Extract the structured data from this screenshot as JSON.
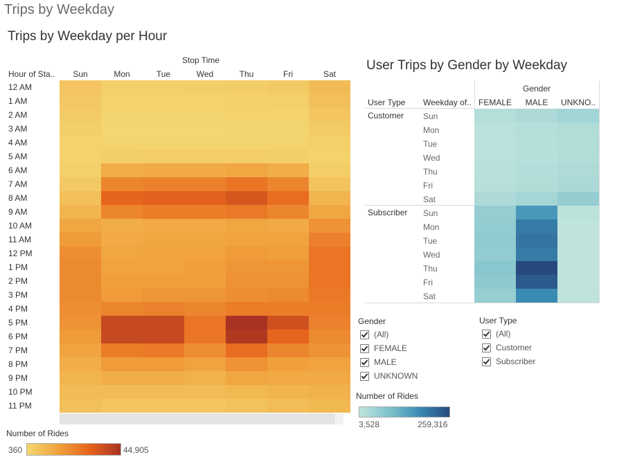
{
  "dashboard": {
    "title": "Trips by Weekday"
  },
  "heatmap1": {
    "title": "Trips by Weekday per Hour",
    "col_group_label": "Stop Time",
    "row_header": "Hour of Sta..",
    "legend": {
      "title": "Number of Rides",
      "min_label": "360",
      "max_label": "44,905"
    }
  },
  "heatmap2": {
    "title": "User Trips by Gender by Weekday",
    "col_group_label": "Gender",
    "row_header_1": "User Type",
    "row_header_2": "Weekday of..",
    "legend": {
      "title": "Number of Rides",
      "min_label": "3,528",
      "max_label": "259,316"
    }
  },
  "filters": {
    "gender": {
      "title": "Gender",
      "options": [
        "(All)",
        "FEMALE",
        "MALE",
        "UNKNOWN"
      ]
    },
    "user_type": {
      "title": "User Type",
      "options": [
        "(All)",
        "Customer",
        "Subscriber"
      ]
    }
  },
  "colors": {
    "scale1": [
      "#f4d670",
      "#f0a23d",
      "#e7641c",
      "#a83322"
    ],
    "scale2": [
      "#bfe4dd",
      "#7fc2cb",
      "#3a8cb4",
      "#27497e"
    ]
  },
  "chart_data": [
    {
      "type": "heatmap",
      "title": "Trips by Weekday per Hour",
      "x_title": "Stop Time",
      "y_title": "Hour of Sta..",
      "x": [
        "Sun",
        "Mon",
        "Tue",
        "Wed",
        "Thu",
        "Fri",
        "Sat"
      ],
      "y": [
        "12 AM",
        "1 AM",
        "2 AM",
        "3 AM",
        "4 AM",
        "5 AM",
        "6 AM",
        "7 AM",
        "8 AM",
        "9 AM",
        "10 AM",
        "11 AM",
        "12 PM",
        "1 PM",
        "2 PM",
        "3 PM",
        "4 PM",
        "5 PM",
        "6 PM",
        "7 PM",
        "8 PM",
        "9 PM",
        "10 PM",
        "11 PM"
      ],
      "values": [
        [
          5400,
          2000,
          2200,
          2500,
          3000,
          3500,
          8000
        ],
        [
          4500,
          1200,
          1300,
          1500,
          1800,
          2200,
          6500
        ],
        [
          3500,
          800,
          900,
          1000,
          1200,
          1500,
          5000
        ],
        [
          2500,
          600,
          600,
          700,
          800,
          900,
          3500
        ],
        [
          1600,
          800,
          800,
          800,
          900,
          1000,
          2000
        ],
        [
          1200,
          2500,
          2600,
          2600,
          2600,
          2500,
          1500
        ],
        [
          2000,
          12000,
          13000,
          13000,
          14000,
          12000,
          2800
        ],
        [
          4000,
          22000,
          23000,
          23000,
          26000,
          22000,
          5500
        ],
        [
          7000,
          30000,
          31000,
          31000,
          34000,
          28000,
          10000
        ],
        [
          10000,
          22000,
          24000,
          24000,
          25000,
          22000,
          14000
        ],
        [
          14000,
          12000,
          13000,
          13000,
          14000,
          13000,
          19000
        ],
        [
          17000,
          13000,
          14000,
          14000,
          15000,
          15000,
          23000
        ],
        [
          20000,
          14000,
          15000,
          15000,
          17000,
          16000,
          26000
        ],
        [
          21000,
          15000,
          15000,
          16000,
          18000,
          18000,
          26000
        ],
        [
          21000,
          16000,
          16000,
          16000,
          19000,
          19000,
          26000
        ],
        [
          21000,
          17000,
          18000,
          18000,
          20000,
          21000,
          25000
        ],
        [
          20000,
          22000,
          23000,
          22000,
          24000,
          24000,
          24000
        ],
        [
          19000,
          38000,
          38000,
          26000,
          44905,
          36000,
          23000
        ],
        [
          17000,
          38000,
          38000,
          26000,
          43000,
          30000,
          21000
        ],
        [
          15000,
          24000,
          25000,
          20000,
          28000,
          22000,
          19000
        ],
        [
          12000,
          17000,
          17000,
          15000,
          19000,
          16000,
          15000
        ],
        [
          10000,
          12000,
          12000,
          11000,
          14000,
          13000,
          13000
        ],
        [
          8000,
          8000,
          8000,
          8000,
          9000,
          10000,
          11000
        ],
        [
          6500,
          5000,
          5000,
          5000,
          6000,
          7500,
          9000
        ]
      ],
      "scale": {
        "min": 360,
        "max": 44905
      },
      "legend_title": "Number of Rides"
    },
    {
      "type": "heatmap",
      "title": "User Trips by Gender by Weekday",
      "x_title": "Gender",
      "x": [
        "FEMALE",
        "MALE",
        "UNKNO.."
      ],
      "y_groups": [
        {
          "name": "Customer",
          "rows": [
            "Sun",
            "Mon",
            "Tue",
            "Wed",
            "Thu",
            "Fri",
            "Sat"
          ]
        },
        {
          "name": "Subscriber",
          "rows": [
            "Sun",
            "Mon",
            "Tue",
            "Wed",
            "Thu",
            "Fri",
            "Sat"
          ]
        }
      ],
      "values": [
        [
          18000,
          28000,
          42000
        ],
        [
          10000,
          18000,
          22000
        ],
        [
          10000,
          17000,
          21000
        ],
        [
          10000,
          17000,
          22000
        ],
        [
          12000,
          20000,
          26000
        ],
        [
          14000,
          22000,
          30000
        ],
        [
          28000,
          38000,
          60000
        ],
        [
          60000,
          155000,
          8000
        ],
        [
          62000,
          195000,
          3528
        ],
        [
          65000,
          205000,
          3800
        ],
        [
          64000,
          195000,
          3800
        ],
        [
          75000,
          259316,
          4000
        ],
        [
          70000,
          238000,
          4000
        ],
        [
          58000,
          175000,
          6500
        ]
      ],
      "scale": {
        "min": 3528,
        "max": 259316
      },
      "legend_title": "Number of Rides"
    }
  ]
}
